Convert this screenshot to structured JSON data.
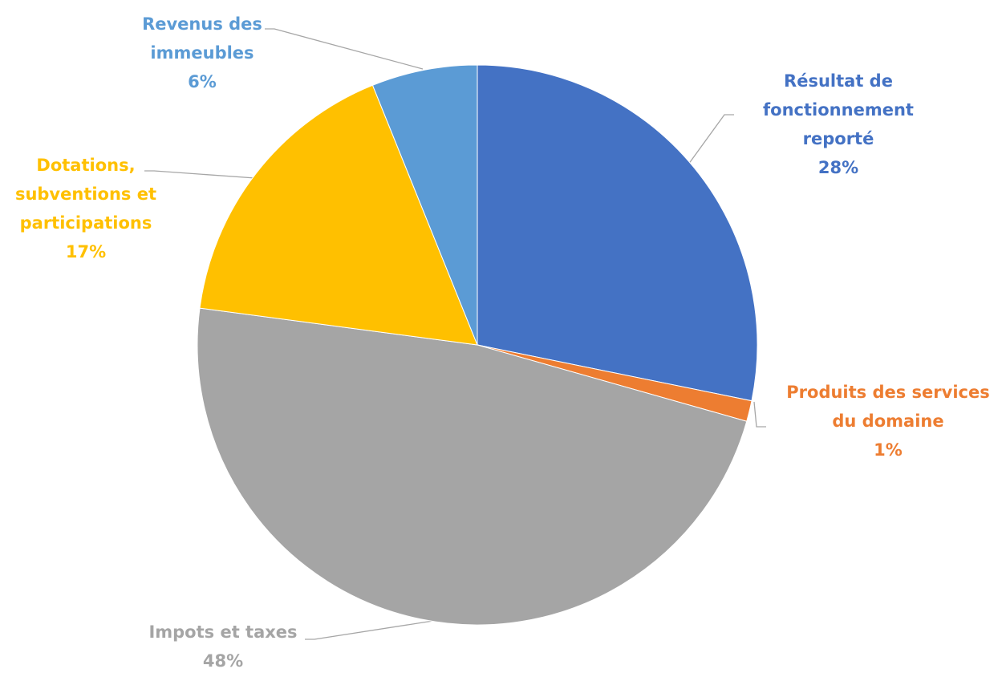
{
  "chart_data": {
    "type": "pie",
    "title": "",
    "slices": [
      {
        "label_lines": [
          "Résultat de",
          "fonctionnement",
          "reporté"
        ],
        "pct_label": "28%",
        "value": 28.2,
        "color": "#4472c4"
      },
      {
        "label_lines": [
          "Produits des services",
          "du domaine"
        ],
        "pct_label": "1%",
        "value": 1.2,
        "color": "#ed7d31"
      },
      {
        "label_lines": [
          "Impots et taxes"
        ],
        "pct_label": "48%",
        "value": 47.7,
        "color": "#a5a5a5"
      },
      {
        "label_lines": [
          "Dotations,",
          "subventions et",
          "participations"
        ],
        "pct_label": "17%",
        "value": 16.8,
        "color": "#ffc000"
      },
      {
        "label_lines": [
          "Revenus des",
          "immeubles"
        ],
        "pct_label": "6%",
        "value": 6.1,
        "color": "#5b9bd5"
      }
    ],
    "legend": "none"
  }
}
